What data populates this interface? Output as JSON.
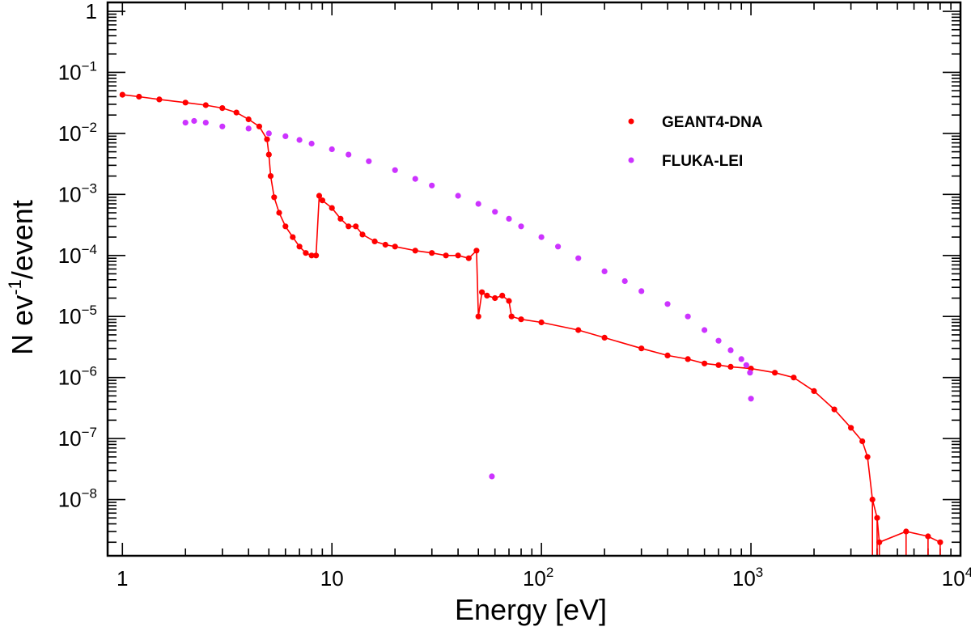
{
  "chart_data": {
    "type": "scatter",
    "title": "",
    "xlabel": "Energy [eV]",
    "ylabel": {
      "base": "N ev",
      "exp": "-1",
      "rest": "/event"
    },
    "xscale": "log",
    "yscale": "log",
    "xlim": [
      0.85,
      10000
    ],
    "ylim": [
      1.2e-09,
      1.4
    ],
    "x_ticks": [
      {
        "value": 1,
        "label": "1",
        "exp": ""
      },
      {
        "value": 10,
        "label": "10",
        "exp": ""
      },
      {
        "value": 100,
        "label": "10",
        "exp": "2"
      },
      {
        "value": 1000,
        "label": "10",
        "exp": "3"
      },
      {
        "value": 10000,
        "label": "10",
        "exp": "4"
      }
    ],
    "y_ticks": [
      {
        "value": 1,
        "label": "1",
        "exp": ""
      },
      {
        "value": 0.1,
        "label": "10",
        "exp": "−1"
      },
      {
        "value": 0.01,
        "label": "10",
        "exp": "−2"
      },
      {
        "value": 0.001,
        "label": "10",
        "exp": "−3"
      },
      {
        "value": 0.0001,
        "label": "10",
        "exp": "−4"
      },
      {
        "value": 1e-05,
        "label": "10",
        "exp": "−5"
      },
      {
        "value": 1e-06,
        "label": "10",
        "exp": "−6"
      },
      {
        "value": 1e-07,
        "label": "10",
        "exp": "−7"
      },
      {
        "value": 1e-08,
        "label": "10",
        "exp": "−8"
      }
    ],
    "legend_position": "top-right",
    "series": [
      {
        "name": "GEANT4-DNA",
        "color": "#ff0000",
        "points": [
          [
            1.0,
            0.043
          ],
          [
            1.2,
            0.04
          ],
          [
            1.5,
            0.036
          ],
          [
            2.0,
            0.032
          ],
          [
            2.5,
            0.029
          ],
          [
            3.0,
            0.026
          ],
          [
            3.5,
            0.022
          ],
          [
            4.0,
            0.017
          ],
          [
            4.5,
            0.013
          ],
          [
            4.9,
            0.008
          ],
          [
            5.0,
            0.0045
          ],
          [
            5.1,
            0.002
          ],
          [
            5.3,
            0.0009
          ],
          [
            5.6,
            0.0005
          ],
          [
            6.0,
            0.0003
          ],
          [
            6.5,
            0.0002
          ],
          [
            7.0,
            0.00014
          ],
          [
            7.5,
            0.00011
          ],
          [
            8.0,
            0.0001
          ],
          [
            8.4,
            0.0001
          ],
          [
            8.7,
            0.00095
          ],
          [
            9.0,
            0.0008
          ],
          [
            10.0,
            0.0006
          ],
          [
            11.0,
            0.0004
          ],
          [
            12.0,
            0.0003
          ],
          [
            13.0,
            0.0003
          ],
          [
            14.0,
            0.00022
          ],
          [
            16.0,
            0.00017
          ],
          [
            18.0,
            0.00015
          ],
          [
            20.0,
            0.00014
          ],
          [
            25.0,
            0.00012
          ],
          [
            30.0,
            0.00011
          ],
          [
            35.0,
            0.0001
          ],
          [
            40.0,
            0.0001
          ],
          [
            45.0,
            9e-05
          ],
          [
            49.0,
            0.00012
          ],
          [
            50.0,
            1e-05
          ],
          [
            52.0,
            2.5e-05
          ],
          [
            55.0,
            2.2e-05
          ],
          [
            60.0,
            2e-05
          ],
          [
            65.0,
            2.2e-05
          ],
          [
            70.0,
            1.8e-05
          ],
          [
            72.0,
            1e-05
          ],
          [
            80.0,
            9e-06
          ],
          [
            100.0,
            8e-06
          ],
          [
            150.0,
            6e-06
          ],
          [
            200.0,
            4.5e-06
          ],
          [
            300.0,
            3e-06
          ],
          [
            400.0,
            2.3e-06
          ],
          [
            500.0,
            2e-06
          ],
          [
            600.0,
            1.7e-06
          ],
          [
            700.0,
            1.6e-06
          ],
          [
            800.0,
            1.5e-06
          ],
          [
            1000.0,
            1.4e-06
          ],
          [
            1300.0,
            1.2e-06
          ],
          [
            1600.0,
            1e-06
          ],
          [
            2000.0,
            6e-07
          ],
          [
            2500.0,
            3e-07
          ],
          [
            3000.0,
            1.5e-07
          ],
          [
            3400.0,
            9e-08
          ],
          [
            3600.0,
            5e-08
          ],
          [
            3800.0,
            1e-08
          ],
          [
            4000.0,
            5e-09
          ],
          [
            4100.0,
            2e-09
          ],
          [
            5500.0,
            3e-09
          ],
          [
            7000.0,
            2.5e-09
          ],
          [
            8000.0,
            2e-09
          ]
        ]
      },
      {
        "name": "FLUKA-LEI",
        "color": "#cc33ff",
        "points": [
          [
            2.0,
            0.015
          ],
          [
            2.2,
            0.016
          ],
          [
            2.5,
            0.015
          ],
          [
            3.0,
            0.013
          ],
          [
            4.0,
            0.012
          ],
          [
            5.0,
            0.01
          ],
          [
            6.0,
            0.009
          ],
          [
            7.0,
            0.0078
          ],
          [
            8.0,
            0.0068
          ],
          [
            10.0,
            0.0055
          ],
          [
            12.0,
            0.0045
          ],
          [
            15.0,
            0.0035
          ],
          [
            20.0,
            0.0025
          ],
          [
            25.0,
            0.0018
          ],
          [
            30.0,
            0.0014
          ],
          [
            40.0,
            0.00095
          ],
          [
            50.0,
            0.0007
          ],
          [
            60.0,
            0.00052
          ],
          [
            70.0,
            0.0004
          ],
          [
            80.0,
            0.0003
          ],
          [
            100.0,
            0.0002
          ],
          [
            120.0,
            0.00014
          ],
          [
            150.0,
            9e-05
          ],
          [
            200.0,
            5.5e-05
          ],
          [
            250.0,
            3.8e-05
          ],
          [
            300.0,
            2.6e-05
          ],
          [
            400.0,
            1.6e-05
          ],
          [
            500.0,
            1e-05
          ],
          [
            600.0,
            6e-06
          ],
          [
            700.0,
            4e-06
          ],
          [
            800.0,
            2.8e-06
          ],
          [
            900.0,
            2e-06
          ],
          [
            950.0,
            1.6e-06
          ],
          [
            990.0,
            1.2e-06
          ],
          [
            1000.0,
            4.5e-07
          ],
          [
            58.0,
            2.4e-08
          ]
        ]
      }
    ]
  }
}
